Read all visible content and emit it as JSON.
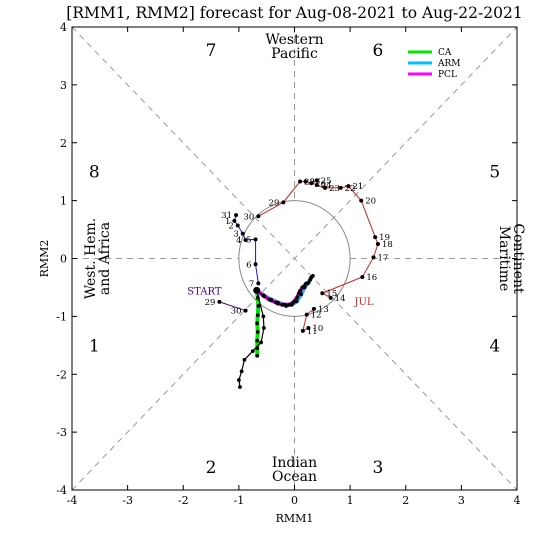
{
  "chart_data": {
    "type": "scatter",
    "title": "[RMM1, RMM2] forecast for Aug-08-2021 to Aug-22-2021",
    "xlabel": "RMM1",
    "ylabel": "RMM2",
    "xlim": [
      -4,
      4
    ],
    "ylim": [
      -4,
      4
    ],
    "xticks": [
      -4,
      -3,
      -2,
      -1,
      0,
      1,
      2,
      3,
      4
    ],
    "yticks": [
      -4,
      -3,
      -2,
      -1,
      0,
      1,
      2,
      3,
      4
    ],
    "unit_circle_radius": 1,
    "phases": [
      {
        "label": "7",
        "x": -1.5,
        "y": 3.6
      },
      {
        "label": "6",
        "x": 1.5,
        "y": 3.6
      },
      {
        "label": "5",
        "x": 3.6,
        "y": 1.5
      },
      {
        "label": "4",
        "x": 3.6,
        "y": -1.5
      },
      {
        "label": "3",
        "x": 1.5,
        "y": -3.6
      },
      {
        "label": "2",
        "x": -1.5,
        "y": -3.6
      },
      {
        "label": "1",
        "x": -3.6,
        "y": -1.5
      },
      {
        "label": "8",
        "x": -3.6,
        "y": 1.5
      }
    ],
    "regions": [
      {
        "lines": [
          "Western",
          "Pacific"
        ],
        "position": "top"
      },
      {
        "lines": [
          "Indian",
          "Ocean"
        ],
        "position": "bottom"
      },
      {
        "lines": [
          "West. Hem.",
          "and Africa"
        ],
        "position": "left"
      },
      {
        "lines": [
          "Maritime",
          "Continent"
        ],
        "position": "right"
      }
    ],
    "legend": {
      "placement": "top-right",
      "entries": [
        {
          "name": "CA",
          "color": "#00e600"
        },
        {
          "name": "ARM",
          "color": "#00bfff"
        },
        {
          "name": "PCL",
          "color": "#ff00ff"
        }
      ]
    },
    "markers": [
      {
        "text": "START",
        "x": -1.62,
        "y": -0.62,
        "color": "#4b0082"
      },
      {
        "text": "JUL",
        "x": 1.25,
        "y": -0.8,
        "color": "#cc2222"
      }
    ],
    "observed_series": [
      {
        "name": "",
        "color": "#cc2222",
        "points": [
          {
            "x": 0.65,
            "y": -0.68,
            "day": "14"
          },
          {
            "x": 0.5,
            "y": -0.6,
            "day": "15"
          },
          {
            "x": 1.22,
            "y": -0.32,
            "day": "16"
          },
          {
            "x": 1.42,
            "y": 0.02,
            "day": "17"
          },
          {
            "x": 1.5,
            "y": 0.25,
            "day": "18"
          },
          {
            "x": 1.45,
            "y": 0.37,
            "day": "19"
          },
          {
            "x": 1.2,
            "y": 1.0,
            "day": "20"
          },
          {
            "x": 0.97,
            "y": 1.25,
            "day": "21"
          },
          {
            "x": 0.83,
            "y": 1.22,
            "day": "22"
          },
          {
            "x": 0.55,
            "y": 1.22,
            "day": "23"
          },
          {
            "x": 0.4,
            "y": 1.27,
            "day": "24"
          },
          {
            "x": 0.4,
            "y": 1.35,
            "day": "25"
          },
          {
            "x": 0.3,
            "y": 1.3,
            "day": "26"
          },
          {
            "x": 0.2,
            "y": 1.33,
            "day": "27"
          },
          {
            "x": 0.1,
            "y": 1.33,
            "day": "28"
          },
          {
            "x": -0.2,
            "y": 0.97,
            "day": "29"
          },
          {
            "x": -0.65,
            "y": 0.73,
            "day": "30"
          }
        ]
      },
      {
        "name": "",
        "color": "#1a1acc",
        "points": [
          {
            "x": -1.05,
            "y": 0.75,
            "day": "31"
          },
          {
            "x": -1.08,
            "y": 0.65,
            "day": "1"
          },
          {
            "x": -1.02,
            "y": 0.57,
            "day": "2"
          },
          {
            "x": -0.93,
            "y": 0.43,
            "day": "3"
          },
          {
            "x": -0.88,
            "y": 0.32,
            "day": "4"
          },
          {
            "x": -0.7,
            "y": 0.33,
            "day": "5"
          },
          {
            "x": -0.7,
            "y": -0.1,
            "day": "6"
          },
          {
            "x": -0.65,
            "y": -0.43,
            "day": "7"
          }
        ]
      },
      {
        "name": "",
        "color": "#4b0082",
        "points": [
          {
            "x": -1.35,
            "y": -0.75,
            "day": "29"
          },
          {
            "x": -0.88,
            "y": -0.9,
            "day": "30"
          }
        ]
      },
      {
        "name": "",
        "color": "#cc2222",
        "points": [
          {
            "x": 0.25,
            "y": -1.2,
            "day": "10"
          },
          {
            "x": 0.15,
            "y": -1.25,
            "day": "11"
          },
          {
            "x": 0.22,
            "y": -0.97,
            "day": "12"
          },
          {
            "x": 0.35,
            "y": -0.87,
            "day": "13"
          }
        ]
      }
    ],
    "forecast_series": [
      {
        "name": "CA",
        "color": "#00e600",
        "points": [
          [
            -0.68,
            -0.55
          ],
          [
            -0.66,
            -0.68
          ],
          [
            -0.65,
            -0.82
          ],
          [
            -0.66,
            -0.98
          ],
          [
            -0.67,
            -1.12
          ],
          [
            -0.66,
            -1.27
          ],
          [
            -0.67,
            -1.42
          ],
          [
            -0.67,
            -1.55
          ],
          [
            -0.67,
            -1.68
          ]
        ]
      },
      {
        "name": "ARM",
        "color": "#00bfff",
        "points": [
          [
            -0.68,
            -0.55
          ],
          [
            -0.55,
            -0.64
          ],
          [
            -0.42,
            -0.71
          ],
          [
            -0.3,
            -0.76
          ],
          [
            -0.17,
            -0.8
          ],
          [
            -0.05,
            -0.8
          ],
          [
            0.04,
            -0.74
          ],
          [
            0.12,
            -0.62
          ],
          [
            0.18,
            -0.5
          ],
          [
            0.25,
            -0.42
          ],
          [
            0.3,
            -0.33
          ]
        ]
      },
      {
        "name": "PCL",
        "color": "#ff00ff",
        "points": [
          [
            -0.68,
            -0.55
          ],
          [
            -0.56,
            -0.64
          ],
          [
            -0.45,
            -0.71
          ],
          [
            -0.33,
            -0.76
          ],
          [
            -0.22,
            -0.8
          ],
          [
            -0.1,
            -0.8
          ],
          [
            -0.02,
            -0.76
          ],
          [
            0.05,
            -0.67
          ],
          [
            0.1,
            -0.56
          ],
          [
            0.16,
            -0.49
          ],
          [
            0.22,
            -0.43
          ]
        ]
      },
      {
        "name": "",
        "color": "#000000",
        "points": [
          [
            -0.68,
            -0.55
          ],
          [
            -0.56,
            -1.0
          ],
          [
            -0.55,
            -1.2
          ],
          [
            -0.6,
            -1.45
          ],
          [
            -0.75,
            -1.6
          ],
          [
            -0.9,
            -1.75
          ],
          [
            -0.95,
            -1.95
          ],
          [
            -1.0,
            -2.1
          ],
          [
            -0.98,
            -2.22
          ]
        ]
      },
      {
        "name": "",
        "color": "#000000",
        "points": [
          [
            -0.68,
            -0.55
          ],
          [
            -0.55,
            -0.65
          ],
          [
            -0.42,
            -0.72
          ],
          [
            -0.3,
            -0.78
          ],
          [
            -0.15,
            -0.82
          ],
          [
            0.0,
            -0.74
          ],
          [
            0.08,
            -0.6
          ],
          [
            0.14,
            -0.5
          ],
          [
            0.2,
            -0.44
          ],
          [
            0.28,
            -0.37
          ],
          [
            0.33,
            -0.3
          ]
        ]
      }
    ]
  }
}
